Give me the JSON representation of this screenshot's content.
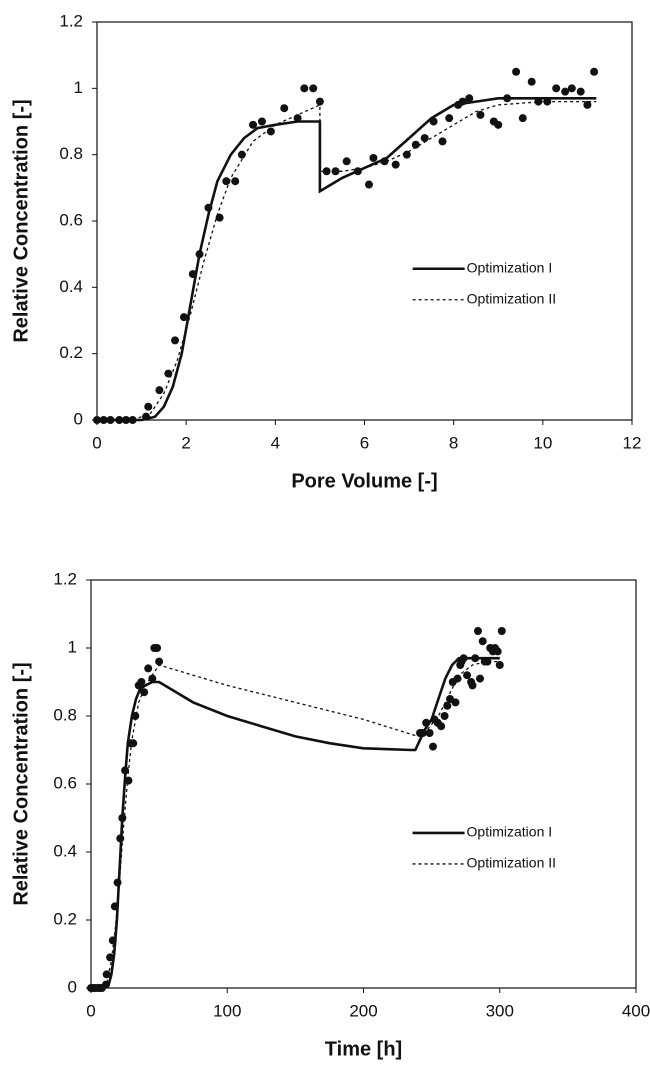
{
  "chart_data": [
    {
      "type": "line",
      "x_label": "Pore Volume [-]",
      "y_label": "Relative Concentration [-]",
      "xlim": [
        0,
        12
      ],
      "ylim": [
        0,
        1.2
      ],
      "xticks": [
        0,
        2,
        4,
        6,
        8,
        10,
        12
      ],
      "yticks": [
        0,
        0.2,
        0.4,
        0.6,
        0.8,
        1,
        1.2
      ],
      "legend": "right",
      "points": {
        "color": "#111111",
        "x": [
          0,
          0.15,
          0.3,
          0.5,
          0.65,
          0.8,
          1.1,
          1.15,
          1.4,
          1.6,
          1.75,
          1.95,
          2.15,
          2.3,
          2.5,
          2.75,
          2.9,
          3.1,
          3.25,
          3.5,
          3.7,
          3.9,
          4.2,
          4.5,
          4.65,
          4.85,
          5.0,
          5.15,
          5.35,
          5.6,
          5.85,
          6.1,
          6.2,
          6.45,
          6.7,
          6.95,
          7.15,
          7.35,
          7.55,
          7.75,
          7.9,
          8.1,
          8.2,
          8.35,
          8.6,
          8.9,
          9.0,
          9.2,
          9.4,
          9.55,
          9.75,
          9.9,
          10.1,
          10.3,
          10.5,
          10.65,
          10.85,
          11.0,
          11.15
        ],
        "y": [
          0,
          0,
          0,
          0,
          0,
          0,
          0.01,
          0.04,
          0.09,
          0.14,
          0.24,
          0.31,
          0.44,
          0.5,
          0.64,
          0.61,
          0.72,
          0.72,
          0.8,
          0.89,
          0.9,
          0.87,
          0.94,
          0.91,
          1.0,
          1.0,
          0.96,
          0.75,
          0.75,
          0.78,
          0.75,
          0.71,
          0.79,
          0.78,
          0.77,
          0.8,
          0.83,
          0.85,
          0.9,
          0.84,
          0.91,
          0.95,
          0.96,
          0.97,
          0.92,
          0.9,
          0.89,
          0.97,
          1.05,
          0.91,
          1.02,
          0.96,
          0.96,
          1.0,
          0.99,
          1.0,
          0.99,
          0.95,
          1.05
        ]
      },
      "series": [
        {
          "name": "Optimization I",
          "color": "#111111",
          "style": "solid",
          "x": [
            0,
            1,
            1.3,
            1.5,
            1.7,
            1.9,
            2.1,
            2.3,
            2.5,
            2.7,
            3,
            3.3,
            3.6,
            4,
            4.5,
            5,
            5,
            5.5,
            6,
            6.5,
            7,
            7.5,
            8,
            8.5,
            9,
            10,
            11.2
          ],
          "y": [
            0,
            0,
            0.01,
            0.04,
            0.1,
            0.2,
            0.35,
            0.5,
            0.62,
            0.72,
            0.8,
            0.85,
            0.88,
            0.89,
            0.9,
            0.9,
            0.69,
            0.73,
            0.76,
            0.79,
            0.85,
            0.91,
            0.95,
            0.96,
            0.97,
            0.97,
            0.97
          ]
        },
        {
          "name": "Optimization II",
          "color": "#111111",
          "style": "dotted",
          "x": [
            0,
            0.8,
            1.2,
            1.5,
            1.8,
            2.1,
            2.4,
            2.7,
            3,
            3.5,
            4,
            4.5,
            5,
            5,
            5.5,
            6,
            6.5,
            7,
            7.5,
            8,
            8.5,
            9,
            10,
            11.2
          ],
          "y": [
            0,
            0,
            0.02,
            0.08,
            0.18,
            0.32,
            0.48,
            0.62,
            0.73,
            0.84,
            0.89,
            0.92,
            0.95,
            0.75,
            0.75,
            0.76,
            0.78,
            0.81,
            0.85,
            0.89,
            0.93,
            0.95,
            0.96,
            0.96
          ]
        }
      ]
    },
    {
      "type": "line",
      "x_label": "Time [h]",
      "y_label": "Relative Concentration [-]",
      "xlim": [
        0,
        400
      ],
      "ylim": [
        0,
        1.2
      ],
      "xticks": [
        0,
        100,
        200,
        300,
        400
      ],
      "yticks": [
        0,
        0.2,
        0.4,
        0.6,
        0.8,
        1,
        1.2
      ],
      "legend": "right",
      "points": {
        "color": "#111111",
        "x": [
          0,
          1.5,
          3,
          5,
          6.5,
          8,
          11,
          11.5,
          14,
          16,
          17.5,
          19.5,
          21.5,
          23,
          25,
          27.5,
          29,
          31,
          32.5,
          35,
          37,
          39,
          42,
          45,
          46.5,
          48.5,
          50,
          241.5,
          243.5,
          246,
          248.5,
          251,
          252,
          254.5,
          257,
          259.5,
          261.5,
          263.5,
          265.5,
          267.5,
          269,
          271,
          272,
          273.5,
          276,
          279,
          280,
          282,
          284,
          285.5,
          287.5,
          289,
          291,
          293,
          295,
          296.5,
          298.5,
          300,
          301.5
        ],
        "y": [
          0,
          0,
          0,
          0,
          0,
          0,
          0.01,
          0.04,
          0.09,
          0.14,
          0.24,
          0.31,
          0.44,
          0.5,
          0.64,
          0.61,
          0.72,
          0.72,
          0.8,
          0.89,
          0.9,
          0.87,
          0.94,
          0.91,
          1.0,
          1.0,
          0.96,
          0.75,
          0.75,
          0.78,
          0.75,
          0.71,
          0.79,
          0.78,
          0.77,
          0.8,
          0.83,
          0.85,
          0.9,
          0.84,
          0.91,
          0.95,
          0.96,
          0.97,
          0.92,
          0.9,
          0.89,
          0.97,
          1.05,
          0.91,
          1.02,
          0.96,
          0.96,
          1.0,
          0.99,
          1.0,
          0.99,
          0.95,
          1.05
        ]
      },
      "series": [
        {
          "name": "Optimization I",
          "color": "#111111",
          "style": "solid",
          "x": [
            0,
            10,
            13,
            15,
            17,
            19,
            21,
            23,
            25,
            27,
            30,
            33,
            36,
            40,
            45,
            50,
            75,
            100,
            125,
            150,
            175,
            200,
            235,
            238,
            245,
            250,
            255,
            260,
            265,
            270,
            280,
            300
          ],
          "y": [
            0,
            0,
            0.01,
            0.04,
            0.1,
            0.2,
            0.35,
            0.5,
            0.62,
            0.72,
            0.8,
            0.85,
            0.88,
            0.89,
            0.9,
            0.9,
            0.84,
            0.8,
            0.77,
            0.74,
            0.72,
            0.705,
            0.7,
            0.7,
            0.76,
            0.79,
            0.85,
            0.91,
            0.95,
            0.97,
            0.97,
            0.97
          ]
        },
        {
          "name": "Optimization II",
          "color": "#111111",
          "style": "dotted",
          "x": [
            0,
            8,
            12,
            15,
            18,
            21,
            24,
            27,
            30,
            35,
            40,
            45,
            50,
            100,
            150,
            200,
            240,
            245,
            255,
            260,
            265,
            270,
            280,
            290,
            300
          ],
          "y": [
            0,
            0,
            0.02,
            0.08,
            0.18,
            0.32,
            0.48,
            0.62,
            0.73,
            0.84,
            0.89,
            0.92,
            0.95,
            0.89,
            0.84,
            0.79,
            0.74,
            0.75,
            0.8,
            0.84,
            0.88,
            0.92,
            0.95,
            0.96,
            0.96
          ]
        }
      ]
    }
  ]
}
